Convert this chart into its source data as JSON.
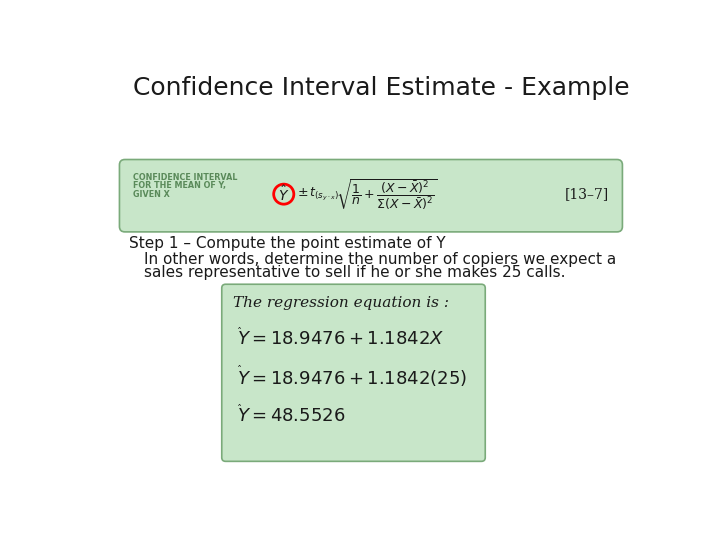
{
  "title": "Confidence Interval Estimate - Example",
  "background_color": "#ffffff",
  "green_box_color": "#c8e6c9",
  "green_box_border": "#7aaa7a",
  "formula_label_lines": [
    "CONFIDENCE INTERVAL",
    "FOR THE MEAN OF Y,",
    "GIVEN X"
  ],
  "formula_label_color": "#5a8a5a",
  "step1_text": "Step 1 – Compute the point estimate of Y",
  "step1_sub_line1": "In other words, determine the number of copiers we expect a",
  "step1_sub_line2": "sales representative to sell if he or she makes 25 calls.",
  "regression_header": "The regression equation is :",
  "formula_ref": "[13–7]"
}
